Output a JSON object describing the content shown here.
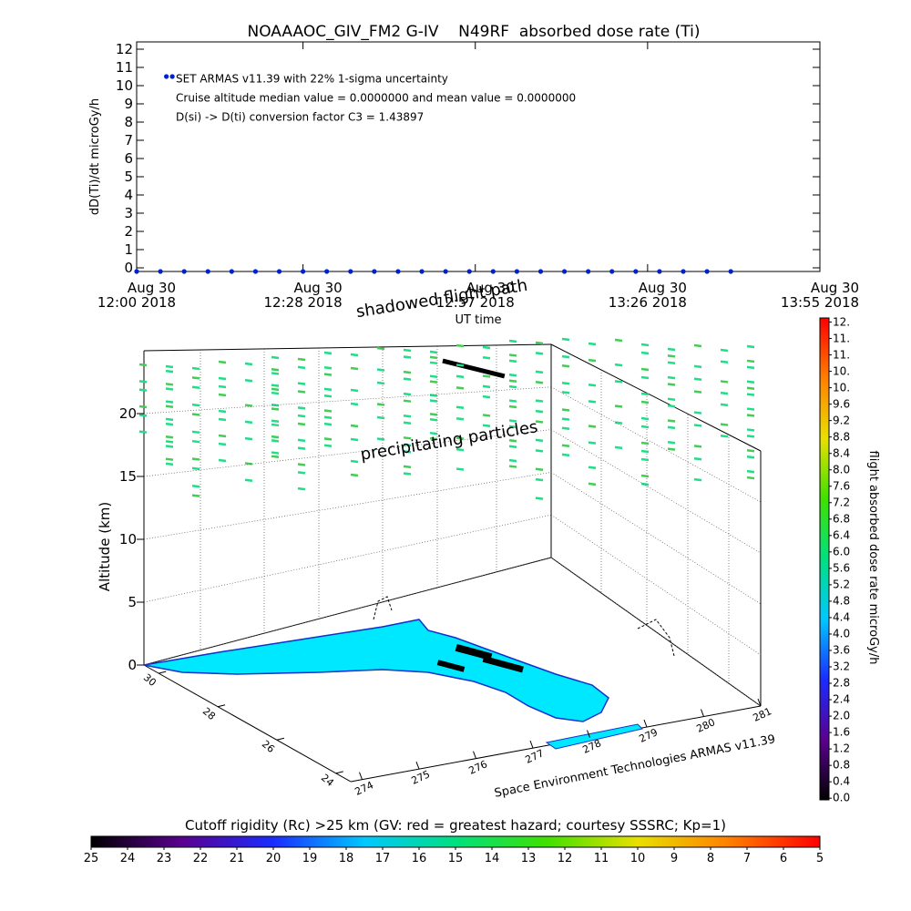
{
  "chart_data": [
    {
      "type": "scatter",
      "title": "NOAAAOC_GIV_FM2 G-IV    N49RF  absorbed dose rate (Ti)",
      "ylabel": "dD(Ti)/dt microGy/h",
      "xlabel": "UT time",
      "annotations": [
        "SET ARMAS v11.39 with 22% 1-sigma uncertainty",
        "Cruise altitude median value = 0.0000000 and mean value = 0.0000000",
        "D(si) -> D(ti) conversion factor C3 = 1.43897"
      ],
      "color": "#0022cc",
      "x": [
        "2018-08-30T12:05",
        "2018-08-30T12:06",
        "2018-08-30T12:00",
        "2018-08-30T12:04",
        "2018-08-30T12:08",
        "2018-08-30T12:12",
        "2018-08-30T12:16",
        "2018-08-30T12:20",
        "2018-08-30T12:24",
        "2018-08-30T12:28",
        "2018-08-30T12:32",
        "2018-08-30T12:36",
        "2018-08-30T12:40",
        "2018-08-30T12:44",
        "2018-08-30T12:48",
        "2018-08-30T12:52",
        "2018-08-30T12:56",
        "2018-08-30T13:00",
        "2018-08-30T13:04",
        "2018-08-30T13:08",
        "2018-08-30T13:12",
        "2018-08-30T13:16",
        "2018-08-30T13:20",
        "2018-08-30T13:24",
        "2018-08-30T13:28",
        "2018-08-30T13:32",
        "2018-08-30T13:36",
        "2018-08-30T13:40"
      ],
      "values": [
        10.5,
        10.5,
        -0.2,
        -0.2,
        -0.2,
        -0.2,
        -0.2,
        -0.2,
        -0.2,
        -0.2,
        -0.2,
        -0.2,
        -0.2,
        -0.2,
        -0.2,
        -0.2,
        -0.2,
        -0.2,
        -0.2,
        -0.2,
        -0.2,
        -0.2,
        -0.2,
        -0.2,
        -0.2,
        -0.2,
        -0.2,
        -0.2
      ],
      "xlim": [
        "2018-08-30T12:00",
        "2018-08-30T13:55"
      ],
      "xticks": [
        {
          "value": "2018-08-30T12:00",
          "label": "Aug 30\n12:00 2018"
        },
        {
          "value": "2018-08-30T12:28",
          "label": "Aug 30\n12:28 2018"
        },
        {
          "value": "2018-08-30T12:57",
          "label": "Aug 30\n12:57 2018"
        },
        {
          "value": "2018-08-30T13:26",
          "label": "Aug 30\n13:26 2018"
        },
        {
          "value": "2018-08-30T13:55",
          "label": "Aug 30\n13:55 2018"
        }
      ],
      "ylim": [
        -0.2,
        12.4
      ],
      "yticks": [
        0,
        1,
        2,
        3,
        4,
        5,
        6,
        7,
        8,
        9,
        10,
        11,
        12
      ]
    },
    {
      "type": "surface3d",
      "zlabel": "Altitude (km)",
      "zlim": [
        0,
        25
      ],
      "zticks": [
        0,
        5,
        10,
        15,
        20
      ],
      "ylim": [
        30.5,
        23.5
      ],
      "yticks": [
        30,
        28,
        26,
        24
      ],
      "xlim": [
        273.8,
        281
      ],
      "xticks": [
        274,
        275,
        276,
        277,
        278,
        279,
        280,
        281
      ],
      "annotations": [
        "shadowed flight path",
        "precipitating particles"
      ],
      "credit": "Space Environment Technologies ARMAS v11.39",
      "colorbar": {
        "label": "flight absorbed dose rate microGy/h",
        "clim": [
          -0.04,
          11.7
        ],
        "colors": [
          "#000000",
          "#5a0090",
          "#1a2cff",
          "#00c8ff",
          "#00e080",
          "#40e000",
          "#e8e000",
          "#ff8000",
          "#ff0000"
        ],
        "ticks": [
          {
            "value": 0,
            "label": "0.0"
          },
          0.4,
          0.8,
          1.2,
          1.6,
          {
            "value": 2,
            "label": "2.0"
          },
          2.4,
          2.8,
          3.2,
          3.6,
          {
            "value": 4,
            "label": "4.0"
          },
          4.4,
          4.8,
          5.2,
          5.6,
          {
            "value": 6,
            "label": "6.0"
          },
          6.4,
          6.8,
          7.2,
          7.6,
          {
            "value": 8,
            "label": "8.0"
          },
          8.4,
          8.8,
          9.2,
          9.6,
          {
            "value": 10,
            "label": "10."
          },
          {
            "value": 10.4,
            "label": "10."
          },
          {
            "value": 10.8,
            "label": "11."
          },
          {
            "value": 11.2,
            "label": "11."
          },
          {
            "value": 11.6,
            "label": "12."
          }
        ]
      }
    },
    {
      "type": "colorbar",
      "title": "Cutoff rigidity (Rc) >25 km (GV: red = greatest hazard; courtesy SSSRC; Kp=1)",
      "xlim": [
        25,
        5
      ],
      "xticks": [
        25,
        24,
        23,
        22,
        21,
        20,
        19,
        18,
        17,
        16,
        15,
        14,
        13,
        12,
        11,
        10,
        9,
        8,
        7,
        6,
        5
      ],
      "colors": [
        "#000000",
        "#5a0090",
        "#1a2cff",
        "#00c8ff",
        "#00e080",
        "#40e000",
        "#e8e000",
        "#ff8000",
        "#ff0000"
      ]
    }
  ]
}
